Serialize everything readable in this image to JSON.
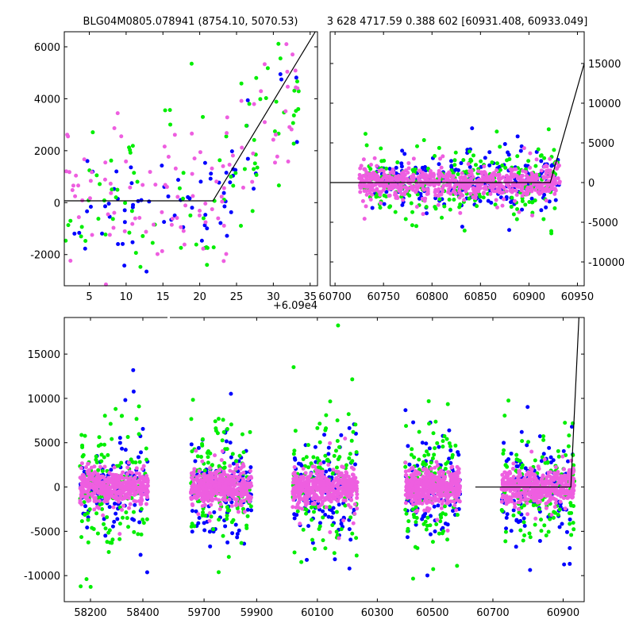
{
  "chart_data": [
    {
      "type": "scatter",
      "title": "BLG04M0805.078941 (8754.10, 5070.53)",
      "xlim": [
        1.6,
        36
      ],
      "ylim": [
        -3200,
        6580
      ],
      "x_offset_label": "+6.09e4",
      "xticks": [
        5,
        10,
        15,
        20,
        25,
        30,
        35
      ],
      "yticks": [
        -2000,
        0,
        2000,
        4000,
        6000
      ],
      "y_axis_side": "left",
      "model_line": {
        "x": [
          1.6,
          21.8,
          35.7
        ],
        "y": [
          70,
          70,
          6580
        ]
      },
      "series": [
        {
          "name": "blue",
          "color": "#0000ff",
          "n": 70,
          "x_range": [
            1.6,
            34
          ],
          "spread": 1100
        },
        {
          "name": "green",
          "color": "#00ee00",
          "n": 90,
          "x_range": [
            1.6,
            34
          ],
          "spread": 1400
        },
        {
          "name": "pink",
          "color": "#ee5ee0",
          "n": 110,
          "x_range": [
            1.6,
            34
          ],
          "spread": 1300
        }
      ]
    },
    {
      "type": "scatter",
      "title": "3 628 4717.59 0.388 602 [60931.408, 60933.049]",
      "xlim": [
        60695,
        60957
      ],
      "ylim": [
        -13000,
        19000
      ],
      "xticks": [
        60700,
        60750,
        60800,
        60850,
        60900,
        60950
      ],
      "yticks": [
        -10000,
        -5000,
        0,
        5000,
        10000,
        15000
      ],
      "y_axis_side": "right",
      "model_line": {
        "x": [
          60695,
          60922,
          60957
        ],
        "y": [
          0,
          0,
          15000
        ]
      },
      "series": [
        {
          "name": "blue",
          "color": "#0000ff",
          "n": 260,
          "x_range": [
            60735,
            60932
          ],
          "spread": 1500
        },
        {
          "name": "green",
          "color": "#00ee00",
          "n": 260,
          "x_range": [
            60730,
            60932
          ],
          "spread": 2200
        },
        {
          "name": "pink",
          "color": "#ee5ee0",
          "n": 700,
          "x_range": [
            60725,
            60932
          ],
          "spread": 900
        }
      ]
    },
    {
      "type": "scatter",
      "title": "",
      "broken_x_axis": true,
      "ylim": [
        -12940,
        19130
      ],
      "xticks": [
        58200,
        58400,
        59700,
        59900,
        60100,
        60300,
        60500,
        60700,
        60900
      ],
      "yticks": [
        -10000,
        -5000,
        0,
        5000,
        10000,
        15000
      ],
      "y_axis_side": "left",
      "seasons": [
        {
          "x_range": [
            58160,
            58420
          ]
        },
        {
          "x_range": [
            59650,
            59880
          ]
        },
        {
          "x_range": [
            60020,
            60230
          ]
        },
        {
          "x_range": [
            60400,
            60600
          ]
        },
        {
          "x_range": [
            60725,
            60932
          ]
        }
      ],
      "model_line": {
        "x": [
          60650,
          60922,
          60945
        ],
        "y": [
          0,
          0,
          19130
        ]
      },
      "series": [
        {
          "name": "blue",
          "color": "#0000ff",
          "n_per_season": 120,
          "spread": 2600
        },
        {
          "name": "green",
          "color": "#00ee00",
          "n_per_season": 140,
          "spread": 3200
        },
        {
          "name": "pink",
          "color": "#ee5ee0",
          "n_per_season": 450,
          "spread": 900
        }
      ]
    }
  ]
}
